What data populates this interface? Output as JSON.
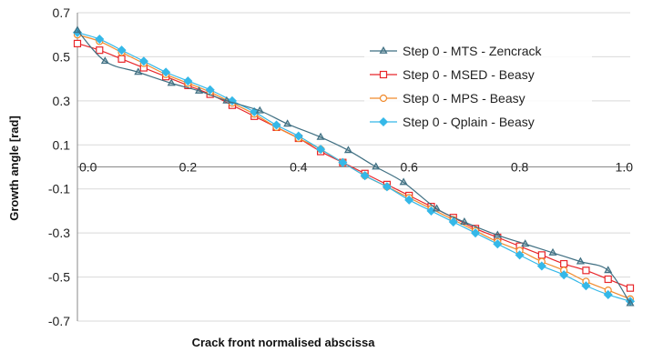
{
  "chart_data": {
    "type": "line",
    "title": "",
    "xlabel": "Crack front normalised abscissa",
    "ylabel": "Growth angle [rad]",
    "xlim": [
      0,
      1
    ],
    "ylim": [
      -0.7,
      0.7
    ],
    "x_ticks": [
      0.0,
      0.2,
      0.4,
      0.6,
      0.8,
      1.0
    ],
    "x_tick_labels": [
      "0.0",
      "0.2",
      "0.4",
      "0.6",
      "0.8",
      "1.0"
    ],
    "y_ticks": [
      0.7,
      0.5,
      0.3,
      0.1,
      -0.1,
      -0.3,
      -0.5,
      -0.7
    ],
    "y_tick_labels": [
      "0.7",
      "0.5",
      "0.3",
      "0.1",
      "-0.1",
      "-0.3",
      "-0.5",
      "-0.7"
    ],
    "grid": "horizontal",
    "legend_position": "top-right",
    "series": [
      {
        "name": "Step 0 - MTS - Zencrack",
        "color": "#3f6f82",
        "marker": "triangle",
        "x": [
          0.0,
          0.05,
          0.11,
          0.17,
          0.22,
          0.27,
          0.33,
          0.38,
          0.44,
          0.49,
          0.54,
          0.59,
          0.65,
          0.7,
          0.76,
          0.81,
          0.86,
          0.91,
          0.96,
          1.0
        ],
        "y": [
          0.62,
          0.48,
          0.43,
          0.38,
          0.345,
          0.3,
          0.255,
          0.195,
          0.135,
          0.075,
          0.0,
          -0.07,
          -0.19,
          -0.25,
          -0.31,
          -0.35,
          -0.39,
          -0.43,
          -0.47,
          -0.62
        ]
      },
      {
        "name": "Step 0 - MSED - Beasy",
        "color": "#e8262a",
        "marker": "square",
        "x": [
          0.0,
          0.04,
          0.08,
          0.12,
          0.16,
          0.2,
          0.24,
          0.28,
          0.32,
          0.36,
          0.4,
          0.44,
          0.48,
          0.52,
          0.56,
          0.6,
          0.64,
          0.68,
          0.72,
          0.76,
          0.8,
          0.84,
          0.88,
          0.92,
          0.96,
          1.0
        ],
        "y": [
          0.56,
          0.53,
          0.49,
          0.45,
          0.41,
          0.37,
          0.33,
          0.28,
          0.23,
          0.18,
          0.13,
          0.07,
          0.02,
          -0.03,
          -0.08,
          -0.13,
          -0.18,
          -0.23,
          -0.28,
          -0.32,
          -0.36,
          -0.4,
          -0.44,
          -0.47,
          -0.51,
          -0.55
        ]
      },
      {
        "name": "Step 0 - MPS - Beasy",
        "color": "#f08a2c",
        "marker": "circle",
        "x": [
          0.0,
          0.04,
          0.08,
          0.12,
          0.16,
          0.2,
          0.24,
          0.28,
          0.32,
          0.36,
          0.4,
          0.44,
          0.48,
          0.52,
          0.56,
          0.6,
          0.64,
          0.68,
          0.72,
          0.76,
          0.8,
          0.84,
          0.88,
          0.92,
          0.96,
          1.0
        ],
        "y": [
          0.6,
          0.57,
          0.52,
          0.47,
          0.42,
          0.38,
          0.34,
          0.29,
          0.24,
          0.18,
          0.13,
          0.08,
          0.02,
          -0.04,
          -0.09,
          -0.14,
          -0.19,
          -0.24,
          -0.29,
          -0.34,
          -0.38,
          -0.43,
          -0.47,
          -0.52,
          -0.56,
          -0.6
        ]
      },
      {
        "name": "Step 0 - Qplain - Beasy",
        "color": "#35b8e8",
        "marker": "diamond",
        "x": [
          0.0,
          0.04,
          0.08,
          0.12,
          0.16,
          0.2,
          0.24,
          0.28,
          0.32,
          0.36,
          0.4,
          0.44,
          0.48,
          0.52,
          0.56,
          0.6,
          0.64,
          0.68,
          0.72,
          0.76,
          0.8,
          0.84,
          0.88,
          0.92,
          0.96,
          1.0
        ],
        "y": [
          0.61,
          0.58,
          0.53,
          0.48,
          0.43,
          0.39,
          0.35,
          0.3,
          0.25,
          0.19,
          0.14,
          0.08,
          0.02,
          -0.04,
          -0.09,
          -0.15,
          -0.2,
          -0.25,
          -0.3,
          -0.35,
          -0.4,
          -0.45,
          -0.49,
          -0.54,
          -0.58,
          -0.61
        ]
      }
    ]
  }
}
